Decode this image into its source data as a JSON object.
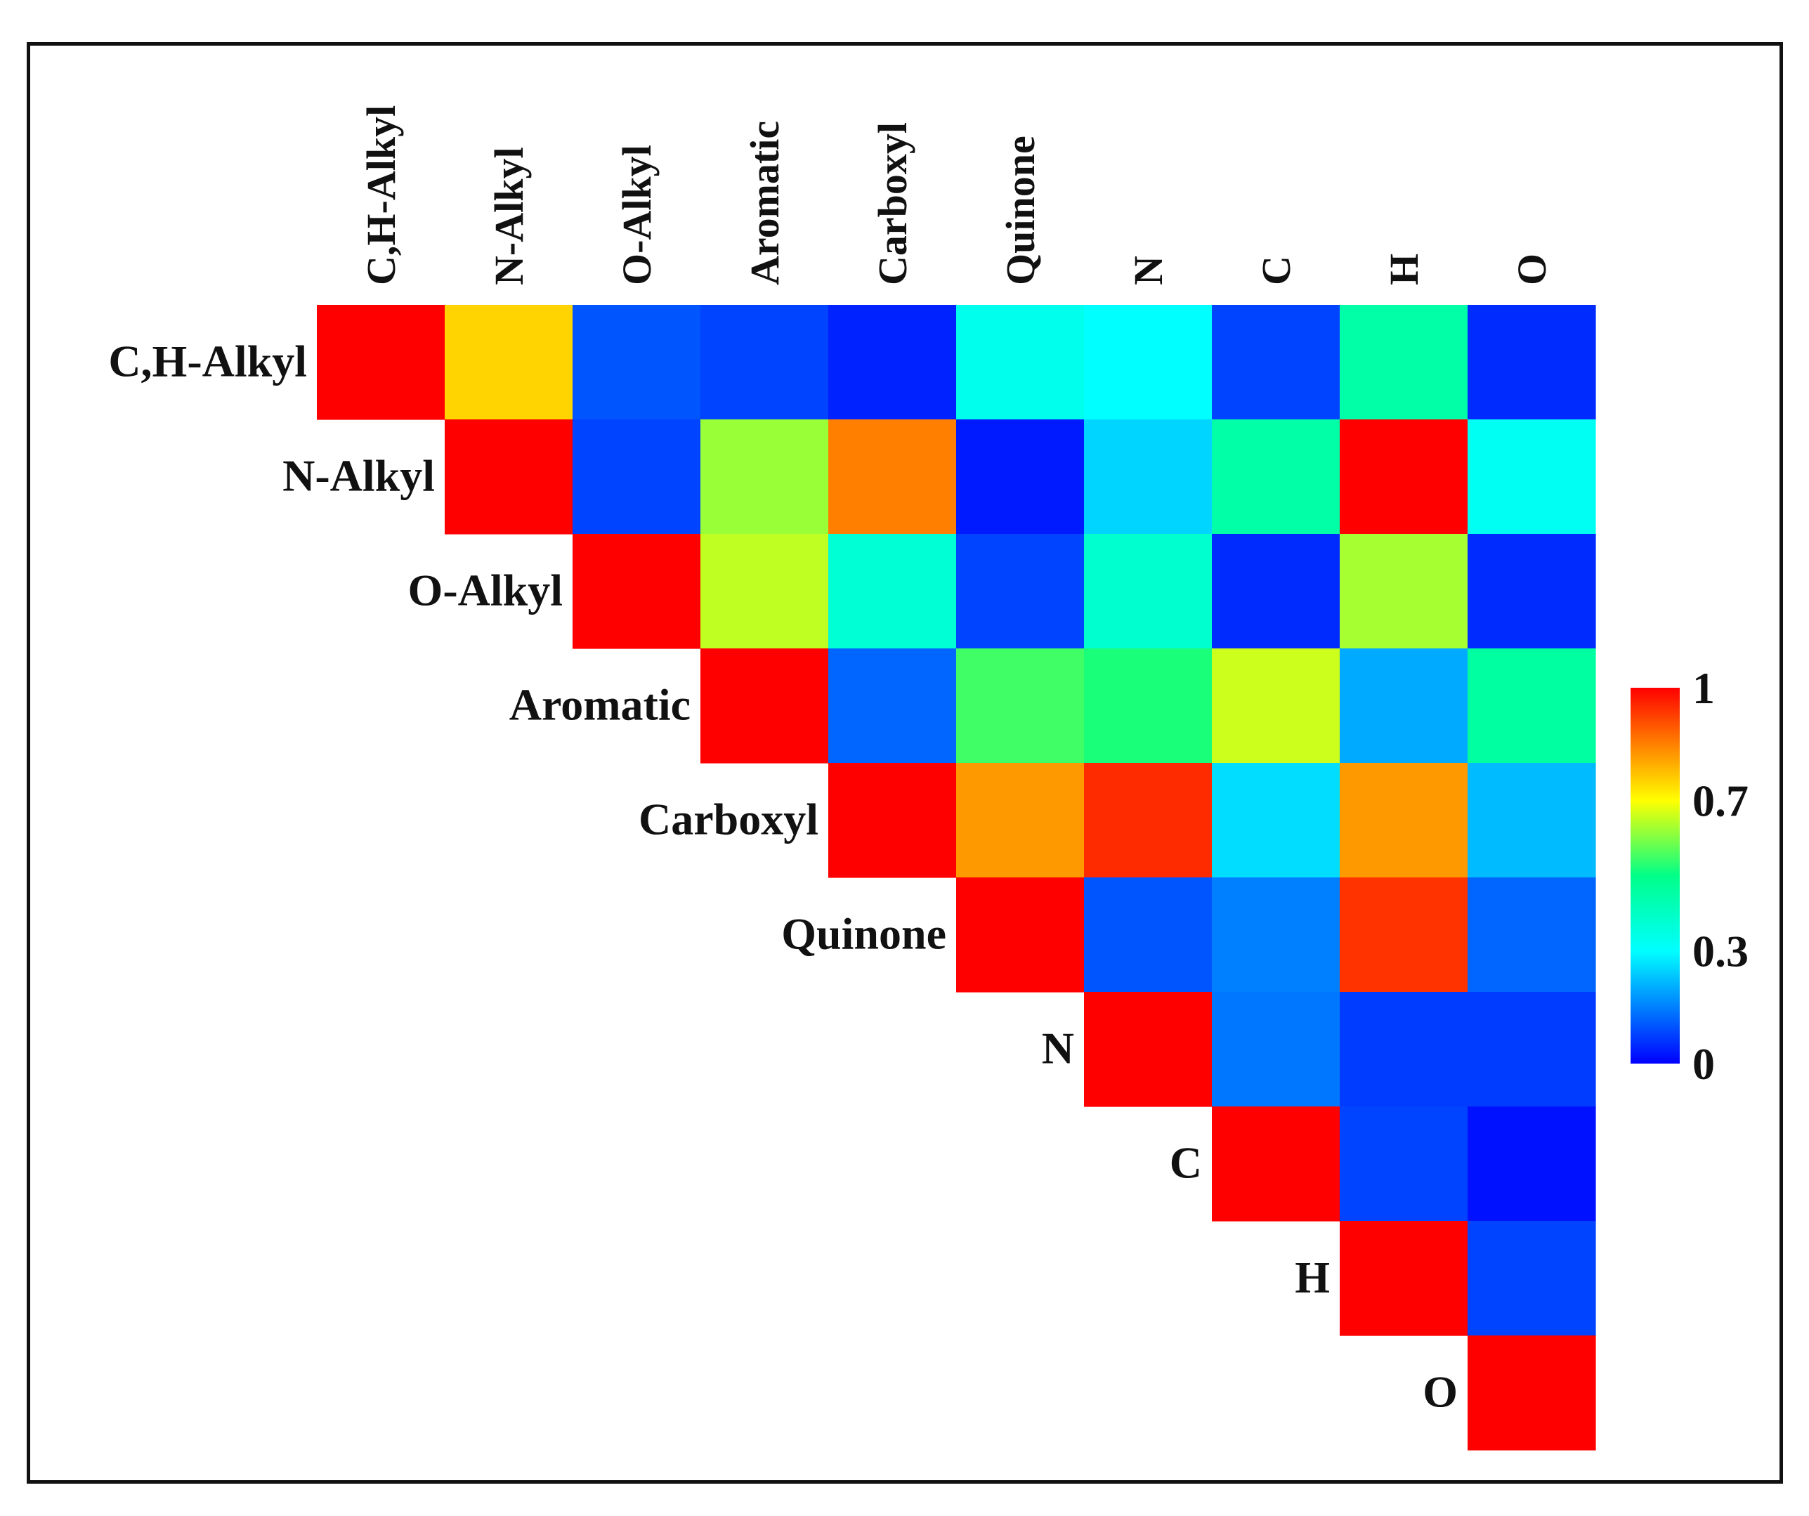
{
  "chart_data": {
    "type": "heatmap",
    "title": "",
    "variables": [
      "C,H-Alkyl",
      "N-Alkyl",
      "O-Alkyl",
      "Aromatic",
      "Carboxyl",
      "Quinone",
      "N",
      "C",
      "H",
      "O"
    ],
    "matrix_layout": "upper-triangular",
    "values": [
      [
        1.0,
        0.75,
        0.1,
        0.08,
        0.04,
        0.33,
        0.3,
        0.08,
        0.45,
        0.05
      ],
      [
        null,
        1.0,
        0.08,
        0.62,
        0.85,
        0.03,
        0.25,
        0.45,
        1.0,
        0.32
      ],
      [
        null,
        null,
        1.0,
        0.65,
        0.37,
        0.08,
        0.38,
        0.05,
        0.63,
        0.05
      ],
      [
        null,
        null,
        null,
        1.0,
        0.12,
        0.55,
        0.52,
        0.66,
        0.2,
        0.46
      ],
      [
        null,
        null,
        null,
        null,
        1.0,
        0.82,
        0.95,
        0.26,
        0.82,
        0.22
      ],
      [
        null,
        null,
        null,
        null,
        null,
        1.0,
        0.1,
        0.15,
        0.94,
        0.12
      ],
      [
        null,
        null,
        null,
        null,
        null,
        null,
        1.0,
        0.14,
        0.07,
        0.07
      ],
      [
        null,
        null,
        null,
        null,
        null,
        null,
        null,
        1.0,
        0.08,
        0.02
      ],
      [
        null,
        null,
        null,
        null,
        null,
        null,
        null,
        null,
        1.0,
        0.08
      ],
      [
        null,
        null,
        null,
        null,
        null,
        null,
        null,
        null,
        null,
        1.0
      ]
    ],
    "colorbar": {
      "range": [
        0,
        1
      ],
      "ticks": [
        {
          "value": 1,
          "label": "1"
        },
        {
          "value": 0.7,
          "label": "0.7"
        },
        {
          "value": 0.3,
          "label": "0.3"
        },
        {
          "value": 0,
          "label": "0"
        }
      ],
      "colormap": "jet",
      "colors": [
        "#0000ff",
        "#00ffff",
        "#00ff88",
        "#ffff00",
        "#ff0000"
      ]
    }
  }
}
